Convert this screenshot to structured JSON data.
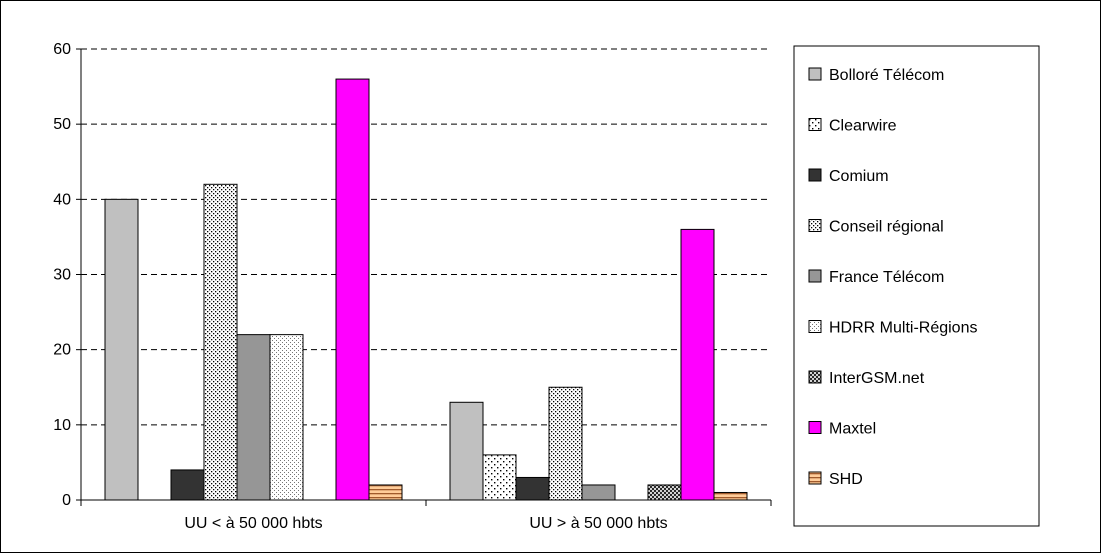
{
  "chart_data": {
    "type": "bar",
    "title": "",
    "xlabel": "",
    "ylabel": "",
    "ylim": [
      0,
      60
    ],
    "yticks": [
      0,
      10,
      20,
      30,
      40,
      50,
      60
    ],
    "grid": "horizontal dashed",
    "legend_position": "right",
    "categories": [
      "UU < à 50 000 hbts",
      "UU > à 50 000 hbts"
    ],
    "series": [
      {
        "name": "Bolloré Télécom",
        "values": [
          40,
          13
        ],
        "color": "#c0c0c0",
        "pattern": "solid"
      },
      {
        "name": "Clearwire",
        "values": [
          0,
          6
        ],
        "color": "#ffffff",
        "pattern": "sparse-dots"
      },
      {
        "name": "Comium",
        "values": [
          4,
          3
        ],
        "color": "#333333",
        "pattern": "solid"
      },
      {
        "name": "Conseil régional",
        "values": [
          42,
          15
        ],
        "color": "#ffffff",
        "pattern": "dense-dots"
      },
      {
        "name": "France Télécom",
        "values": [
          22,
          2
        ],
        "color": "#969696",
        "pattern": "solid"
      },
      {
        "name": "HDRR Multi-Régions",
        "values": [
          22,
          0
        ],
        "color": "#ffffff",
        "pattern": "fine-dots"
      },
      {
        "name": "InterGSM.net",
        "values": [
          0,
          2
        ],
        "color": "#ffffff",
        "pattern": "crosshatch"
      },
      {
        "name": "Maxtel",
        "values": [
          56,
          36
        ],
        "color": "#ff00ff",
        "pattern": "solid"
      },
      {
        "name": "SHD",
        "values": [
          2,
          1
        ],
        "color": "#ffcc99",
        "pattern": "horizontal-lines"
      }
    ]
  }
}
